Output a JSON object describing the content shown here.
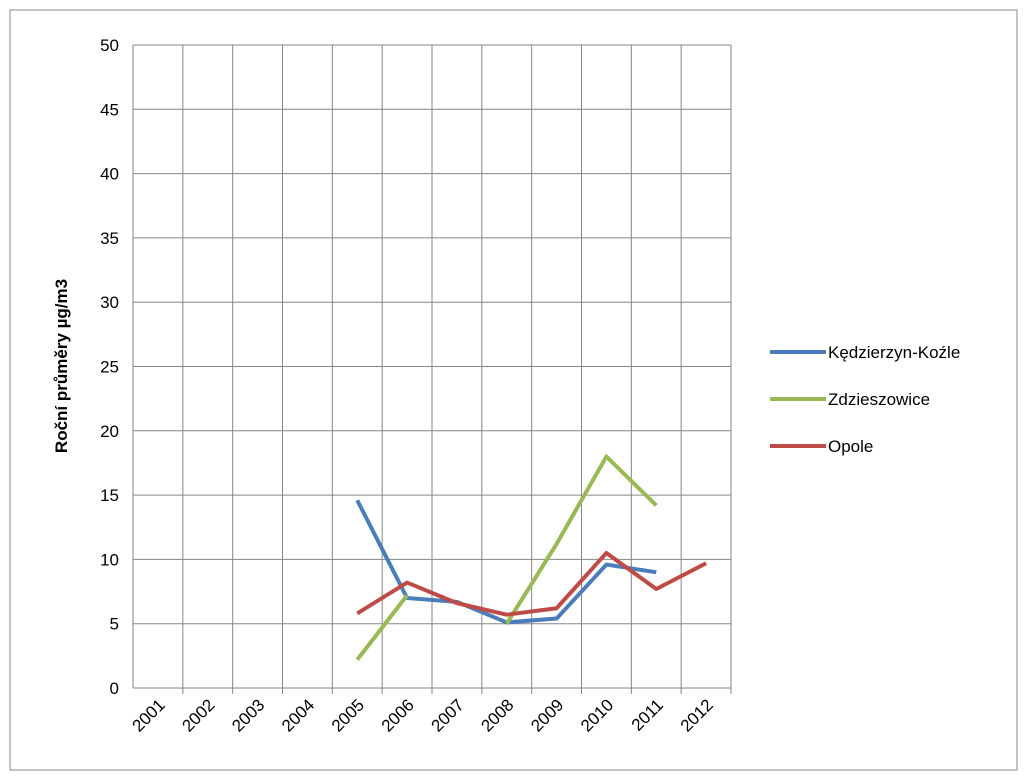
{
  "chart_data": {
    "type": "line",
    "y_label": "Roční průměry µg/m3",
    "categories": [
      "2001",
      "2002",
      "2003",
      "2004",
      "2005",
      "2006",
      "2007",
      "2008",
      "2009",
      "2010",
      "2011",
      "2012"
    ],
    "series": [
      {
        "name": "Kędzierzyn-Koźle",
        "color": "#4a7ebb",
        "values": [
          null,
          null,
          null,
          null,
          14.6,
          7.0,
          6.7,
          5.1,
          5.4,
          9.6,
          9.0,
          null
        ]
      },
      {
        "name": "Zdzieszowice",
        "color": "#98b954",
        "values": [
          null,
          null,
          null,
          null,
          2.2,
          7.2,
          null,
          5.0,
          11.2,
          18.0,
          14.2,
          null
        ]
      },
      {
        "name": "Opole",
        "color": "#be4b48",
        "values": [
          null,
          null,
          null,
          null,
          5.8,
          8.2,
          6.6,
          5.7,
          6.2,
          10.5,
          7.7,
          9.7
        ]
      }
    ],
    "ylim": [
      0,
      50
    ],
    "yticks": [
      0,
      5,
      10,
      15,
      20,
      25,
      30,
      35,
      40,
      45,
      50
    ],
    "grid": true,
    "legend": "right"
  }
}
